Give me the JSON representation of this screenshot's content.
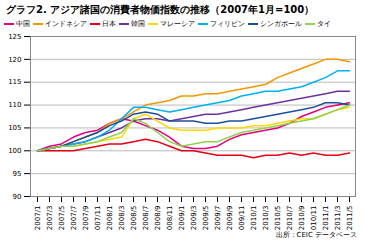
{
  "chart_data": {
    "type": "line",
    "title": "グラフ2. アジア諸国の消費者物価指数の推移（2007年1月=100）",
    "caption": "出所：CEIC データベース",
    "categories": [
      "2007/1",
      "2007/3",
      "2007/5",
      "2007/7",
      "2007/9",
      "2007/11",
      "2008/1",
      "2008/3",
      "2008/5",
      "2008/7",
      "2008/9",
      "2008/11",
      "2009/1",
      "2009/3",
      "2009/5",
      "2009/7",
      "2009/9",
      "2009/11",
      "2010/1",
      "2010/3",
      "2010/5",
      "2010/7",
      "2010/9",
      "2010/11",
      "2011/1",
      "2011/3",
      "2011/5"
    ],
    "series": [
      {
        "name": "中国",
        "color": "#e4007f",
        "values": [
          100,
          101,
          101.5,
          103,
          104,
          104.5,
          106,
          107,
          106.5,
          105.5,
          104.5,
          103,
          101,
          100.5,
          100.5,
          101,
          102.5,
          103.5,
          104,
          104.5,
          105,
          106,
          107.5,
          108.5,
          109.5,
          110,
          110.5
        ]
      },
      {
        "name": "インドネシア",
        "color": "#f39800",
        "values": [
          100,
          100.5,
          101,
          102,
          103,
          104,
          106,
          107,
          108.5,
          110,
          110.5,
          111,
          112,
          112,
          112.5,
          112.5,
          113,
          113.5,
          114,
          114.5,
          116,
          117,
          118,
          119,
          120,
          120,
          119.5
        ]
      },
      {
        "name": "日本",
        "color": "#e60012",
        "values": [
          100,
          100,
          100,
          100,
          100.5,
          101,
          101.5,
          101.5,
          102,
          102.5,
          102,
          101,
          100,
          100,
          99.5,
          99,
          99,
          99,
          98.5,
          99,
          99,
          99.5,
          99,
          99.5,
          99,
          99,
          99.5
        ]
      },
      {
        "name": "韓国",
        "color": "#7030a0",
        "values": [
          100,
          100.5,
          101,
          101.5,
          102,
          103,
          104,
          105,
          106.5,
          107,
          107,
          106.5,
          107,
          107.5,
          108,
          108,
          108.5,
          109,
          109.5,
          110,
          110.5,
          111,
          111.5,
          112,
          112.5,
          113,
          113
        ]
      },
      {
        "name": "マレーシア",
        "color": "#ffd700",
        "values": [
          100,
          100.5,
          101,
          101,
          101.5,
          102,
          102.5,
          103,
          107,
          108,
          106.5,
          105,
          104.5,
          104.5,
          104.5,
          105,
          105,
          105,
          105.5,
          105.5,
          106,
          106.5,
          107,
          107,
          108,
          109,
          109.5
        ]
      },
      {
        "name": "フィリピン",
        "color": "#00b0f0",
        "values": [
          100,
          100.5,
          101,
          101.5,
          102,
          103,
          104.5,
          107,
          109.5,
          109.5,
          109,
          108.5,
          109,
          109.5,
          110,
          110.5,
          111,
          112,
          112.5,
          113,
          113,
          113.5,
          114,
          115,
          116,
          117.5,
          117.5
        ]
      },
      {
        "name": "シンガポール",
        "color": "#1f4e9c",
        "values": [
          100,
          100.5,
          101,
          102,
          103,
          104,
          105.5,
          106.5,
          108,
          108.5,
          108,
          106.5,
          106.5,
          106.5,
          106,
          106,
          106.5,
          106.5,
          107,
          107.5,
          108,
          108.5,
          109,
          109.5,
          110.5,
          110.5,
          110
        ]
      },
      {
        "name": "タイ",
        "color": "#92d050",
        "values": [
          100,
          100.5,
          101,
          101,
          101.5,
          102,
          103,
          104,
          107,
          106,
          104,
          102,
          101,
          101.5,
          102,
          102,
          103,
          104,
          104.5,
          105,
          105.5,
          106,
          106.5,
          107,
          108,
          109,
          110
        ]
      }
    ],
    "ylim": [
      90,
      125
    ],
    "yticks": [
      90,
      95,
      100,
      105,
      110,
      115,
      120,
      125
    ],
    "grid": true,
    "legend": "top"
  }
}
